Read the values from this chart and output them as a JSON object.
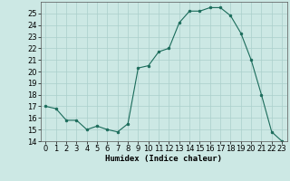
{
  "x": [
    0,
    1,
    2,
    3,
    4,
    5,
    6,
    7,
    8,
    9,
    10,
    11,
    12,
    13,
    14,
    15,
    16,
    17,
    18,
    19,
    20,
    21,
    22,
    23
  ],
  "y": [
    17.0,
    16.8,
    15.8,
    15.8,
    15.0,
    15.3,
    15.0,
    14.8,
    15.5,
    20.3,
    20.5,
    21.7,
    22.0,
    24.2,
    25.2,
    25.2,
    25.5,
    25.5,
    24.8,
    23.3,
    21.0,
    18.0,
    14.8,
    14.0
  ],
  "line_color": "#1a6b5a",
  "marker_color": "#1a6b5a",
  "bg_color": "#cce8e4",
  "grid_color": "#aacfcb",
  "xlabel": "Humidex (Indice chaleur)",
  "xlim": [
    -0.5,
    23.5
  ],
  "ylim": [
    14,
    26
  ],
  "yticks": [
    14,
    15,
    16,
    17,
    18,
    19,
    20,
    21,
    22,
    23,
    24,
    25
  ],
  "xticks": [
    0,
    1,
    2,
    3,
    4,
    5,
    6,
    7,
    8,
    9,
    10,
    11,
    12,
    13,
    14,
    15,
    16,
    17,
    18,
    19,
    20,
    21,
    22,
    23
  ],
  "label_fontsize": 6.5,
  "tick_fontsize": 6.0
}
